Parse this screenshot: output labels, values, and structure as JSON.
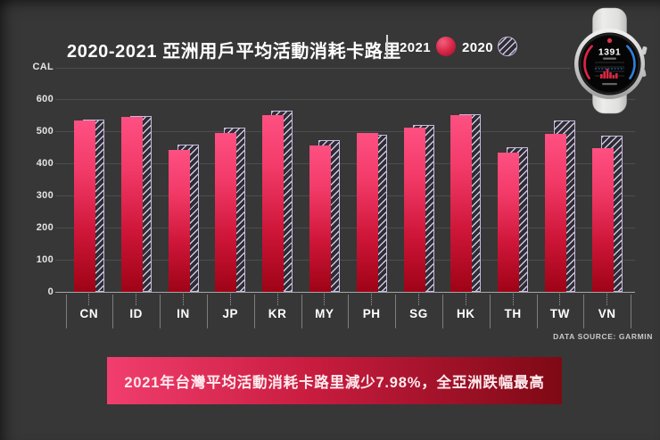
{
  "header": {
    "title": "2020-2021 亞洲用戶平均活動消耗卡路里",
    "legend": [
      {
        "label": "2021",
        "swatch": "solid-red"
      },
      {
        "label": "2020",
        "swatch": "hatched"
      }
    ]
  },
  "chart_data": {
    "type": "bar",
    "title": "2020-2021 亞洲用戶平均活動消耗卡路里",
    "ylabel": "CAL",
    "categories": [
      "CN",
      "ID",
      "IN",
      "JP",
      "KR",
      "MY",
      "PH",
      "SG",
      "HK",
      "TH",
      "TW",
      "VN"
    ],
    "series": [
      {
        "name": "2021",
        "values": [
          535,
          545,
          443,
          496,
          552,
          457,
          495,
          513,
          552,
          434,
          492,
          448
        ]
      },
      {
        "name": "2020",
        "values": [
          537,
          549,
          459,
          513,
          566,
          474,
          490,
          520,
          555,
          452,
          535,
          487
        ]
      }
    ],
    "ylim": [
      0,
      600
    ],
    "yticks": [
      0,
      100,
      200,
      300,
      400,
      500,
      600
    ],
    "grid": true,
    "legend_position": "top-right"
  },
  "banner": {
    "text": "2021年台灣平均活動消耗卡路里減少7.98%，全亞洲跌幅最高"
  },
  "footer": {
    "data_source": "DATA SOURCE: GARMIN"
  },
  "watch": {
    "display_value": "1391"
  },
  "colors": {
    "background": "#373737",
    "bar_gradient_top": "#fe5082",
    "bar_gradient_bottom": "#9e0316",
    "hatch_stripe": "#d8ccec",
    "hatch_border": "#c8badf",
    "banner_left": "#f13e6e",
    "banner_right": "#7e0915",
    "grid": "#4d4d4d",
    "legend_red": "#d92a4b"
  }
}
